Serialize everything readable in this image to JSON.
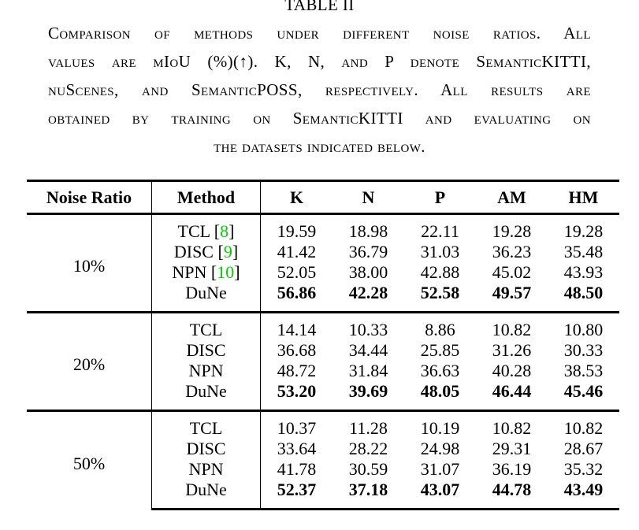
{
  "page": {
    "background": "#ffffff",
    "text_color": "#000000"
  },
  "caption": {
    "label": "TABLE II",
    "lines": [
      "Comparison of methods under different noise ratios. All",
      "values are mIoU (%)(↑). K, N, and P denote SemanticKITTI,",
      "nuScenes, and SemanticPOSS, respectively. All results are",
      "obtained by training on SemanticKITTI and evaluating on",
      "the datasets indicated below."
    ]
  },
  "table": {
    "columns": [
      "Noise Ratio",
      "Method",
      "K",
      "N",
      "P",
      "AM",
      "HM"
    ],
    "citation_color": "#00cc00",
    "groups": [
      {
        "noise_ratio": "10%",
        "rows": [
          {
            "method": "TCL",
            "citation": "8",
            "bold": false,
            "values": [
              "19.59",
              "18.98",
              "22.11",
              "19.28",
              "19.28"
            ]
          },
          {
            "method": "DISC",
            "citation": "9",
            "bold": false,
            "values": [
              "41.42",
              "36.79",
              "31.03",
              "36.23",
              "35.48"
            ]
          },
          {
            "method": "NPN",
            "citation": "10",
            "bold": false,
            "values": [
              "52.05",
              "38.00",
              "42.88",
              "45.02",
              "43.93"
            ]
          },
          {
            "method": "DuNe",
            "citation": null,
            "bold": true,
            "values": [
              "56.86",
              "42.28",
              "52.58",
              "49.57",
              "48.50"
            ]
          }
        ]
      },
      {
        "noise_ratio": "20%",
        "rows": [
          {
            "method": "TCL",
            "citation": null,
            "bold": false,
            "values": [
              "14.14",
              "10.33",
              "8.86",
              "10.82",
              "10.80"
            ]
          },
          {
            "method": "DISC",
            "citation": null,
            "bold": false,
            "values": [
              "36.68",
              "34.44",
              "25.85",
              "31.26",
              "30.33"
            ]
          },
          {
            "method": "NPN",
            "citation": null,
            "bold": false,
            "values": [
              "48.72",
              "31.84",
              "36.63",
              "40.28",
              "38.53"
            ]
          },
          {
            "method": "DuNe",
            "citation": null,
            "bold": true,
            "values": [
              "53.20",
              "39.69",
              "48.05",
              "46.44",
              "45.46"
            ]
          }
        ]
      },
      {
        "noise_ratio": "50%",
        "rows": [
          {
            "method": "TCL",
            "citation": null,
            "bold": false,
            "values": [
              "10.37",
              "11.28",
              "10.19",
              "10.82",
              "10.82"
            ]
          },
          {
            "method": "DISC",
            "citation": null,
            "bold": false,
            "values": [
              "33.64",
              "28.22",
              "24.98",
              "29.31",
              "28.67"
            ]
          },
          {
            "method": "NPN",
            "citation": null,
            "bold": false,
            "values": [
              "41.78",
              "30.59",
              "31.07",
              "36.19",
              "35.32"
            ]
          },
          {
            "method": "DuNe",
            "citation": null,
            "bold": true,
            "values": [
              "52.37",
              "37.18",
              "43.07",
              "44.78",
              "43.49"
            ]
          }
        ]
      }
    ]
  }
}
